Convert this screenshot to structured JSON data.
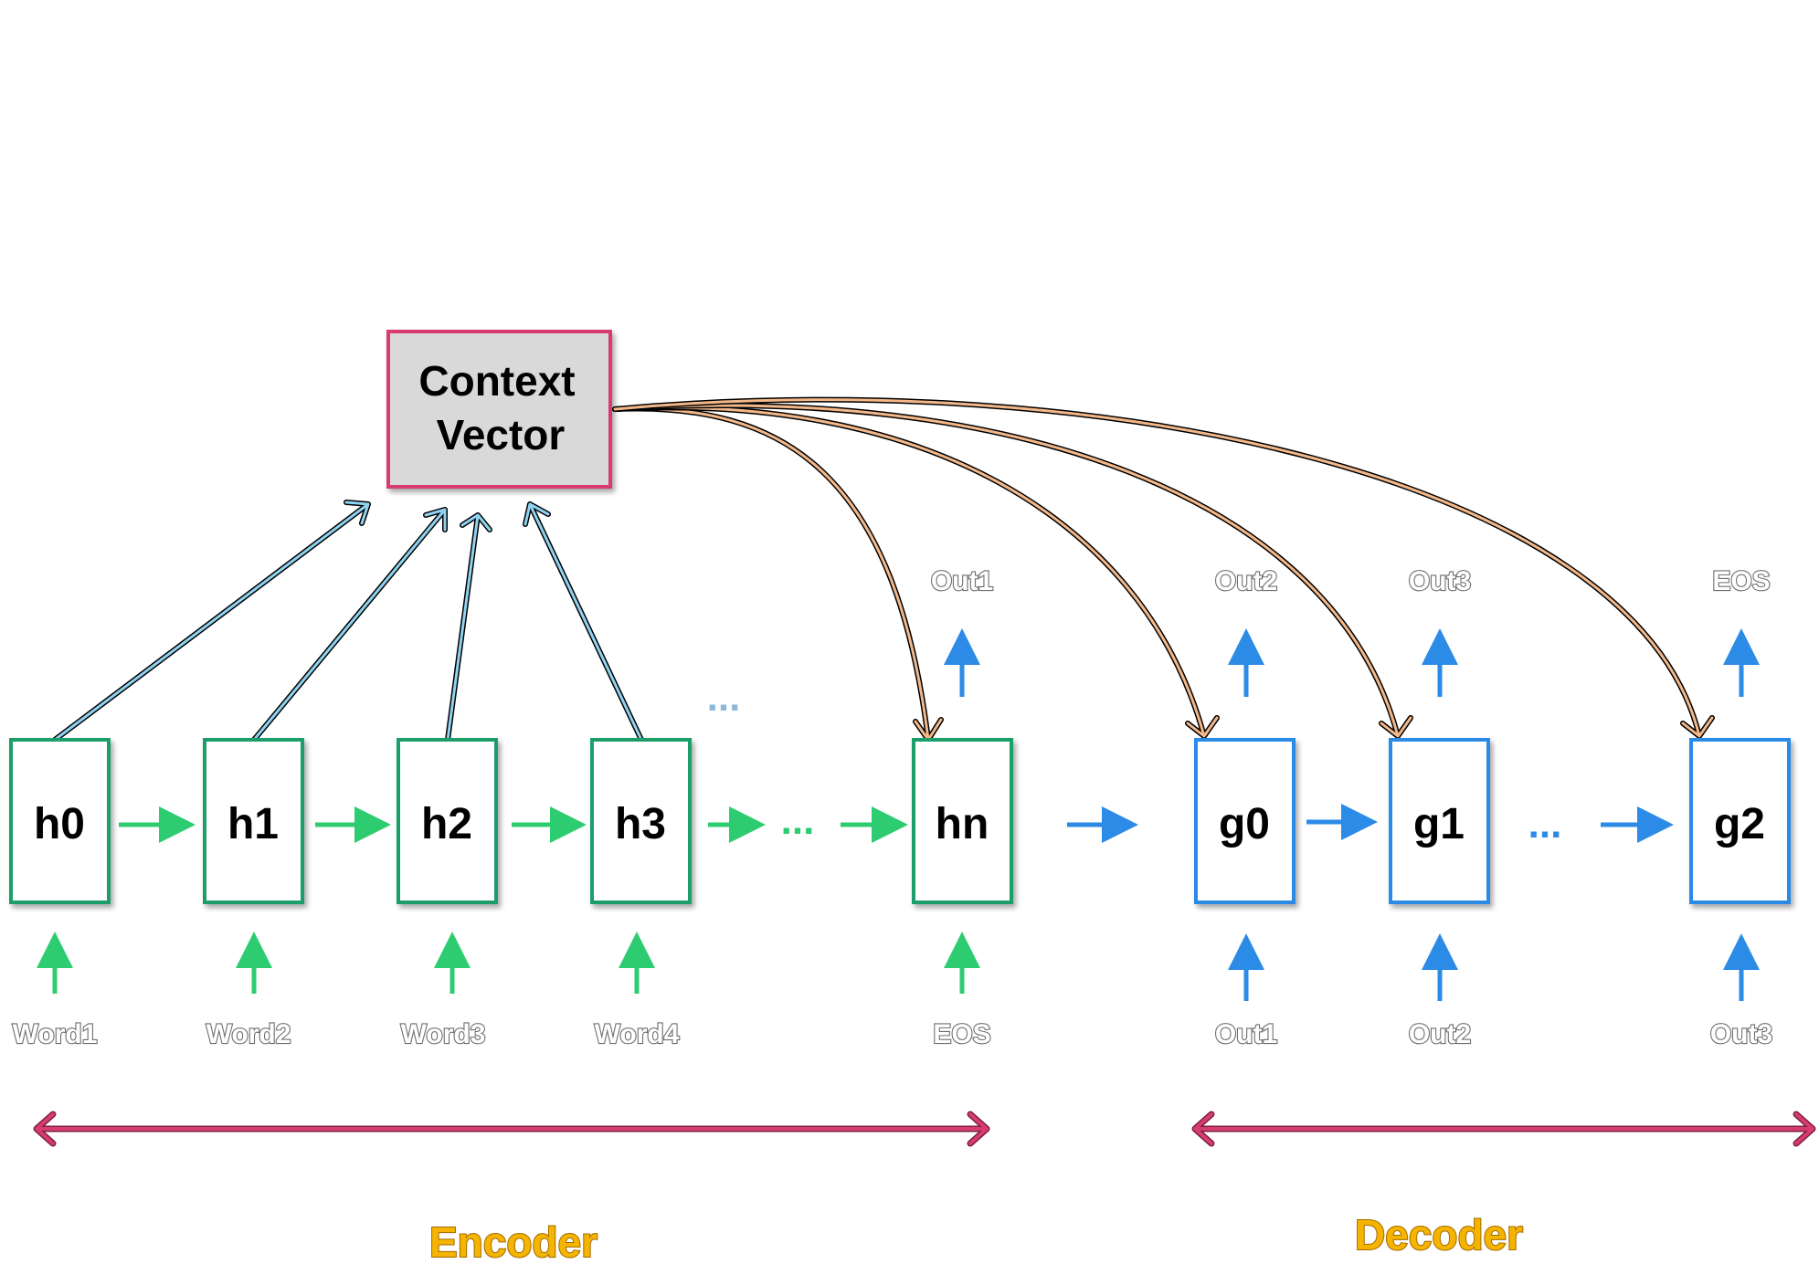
{
  "diagram": {
    "context_vector": {
      "line1": "Context",
      "line2": "Vector"
    },
    "encoder_cells": [
      "h0",
      "h1",
      "h2",
      "h3",
      "hn"
    ],
    "decoder_cells": [
      "g0",
      "g1",
      "g2"
    ],
    "encoder_inputs": [
      "Word1",
      "Word2",
      "Word3",
      "Word4",
      "EOS"
    ],
    "encoder_output": "Out1",
    "decoder_inputs": [
      "Out1",
      "Out2",
      "Out3"
    ],
    "decoder_outputs": [
      "Out2",
      "Out3",
      "EOS"
    ],
    "ellipsis": "...",
    "encoder_label": "Encoder",
    "decoder_label": "Decoder"
  },
  "colors": {
    "encoder": "#1f9e6a",
    "encoder_arrow": "#2ecc71",
    "decoder": "#2b8be6",
    "context_border": "#d83a72",
    "context_fill": "#d9d9d9",
    "attention_arrow": "#8fd3f0",
    "context_arrow": "#f3b88a",
    "span_arrow": "#d83a72",
    "section_text": "#f4b400"
  }
}
